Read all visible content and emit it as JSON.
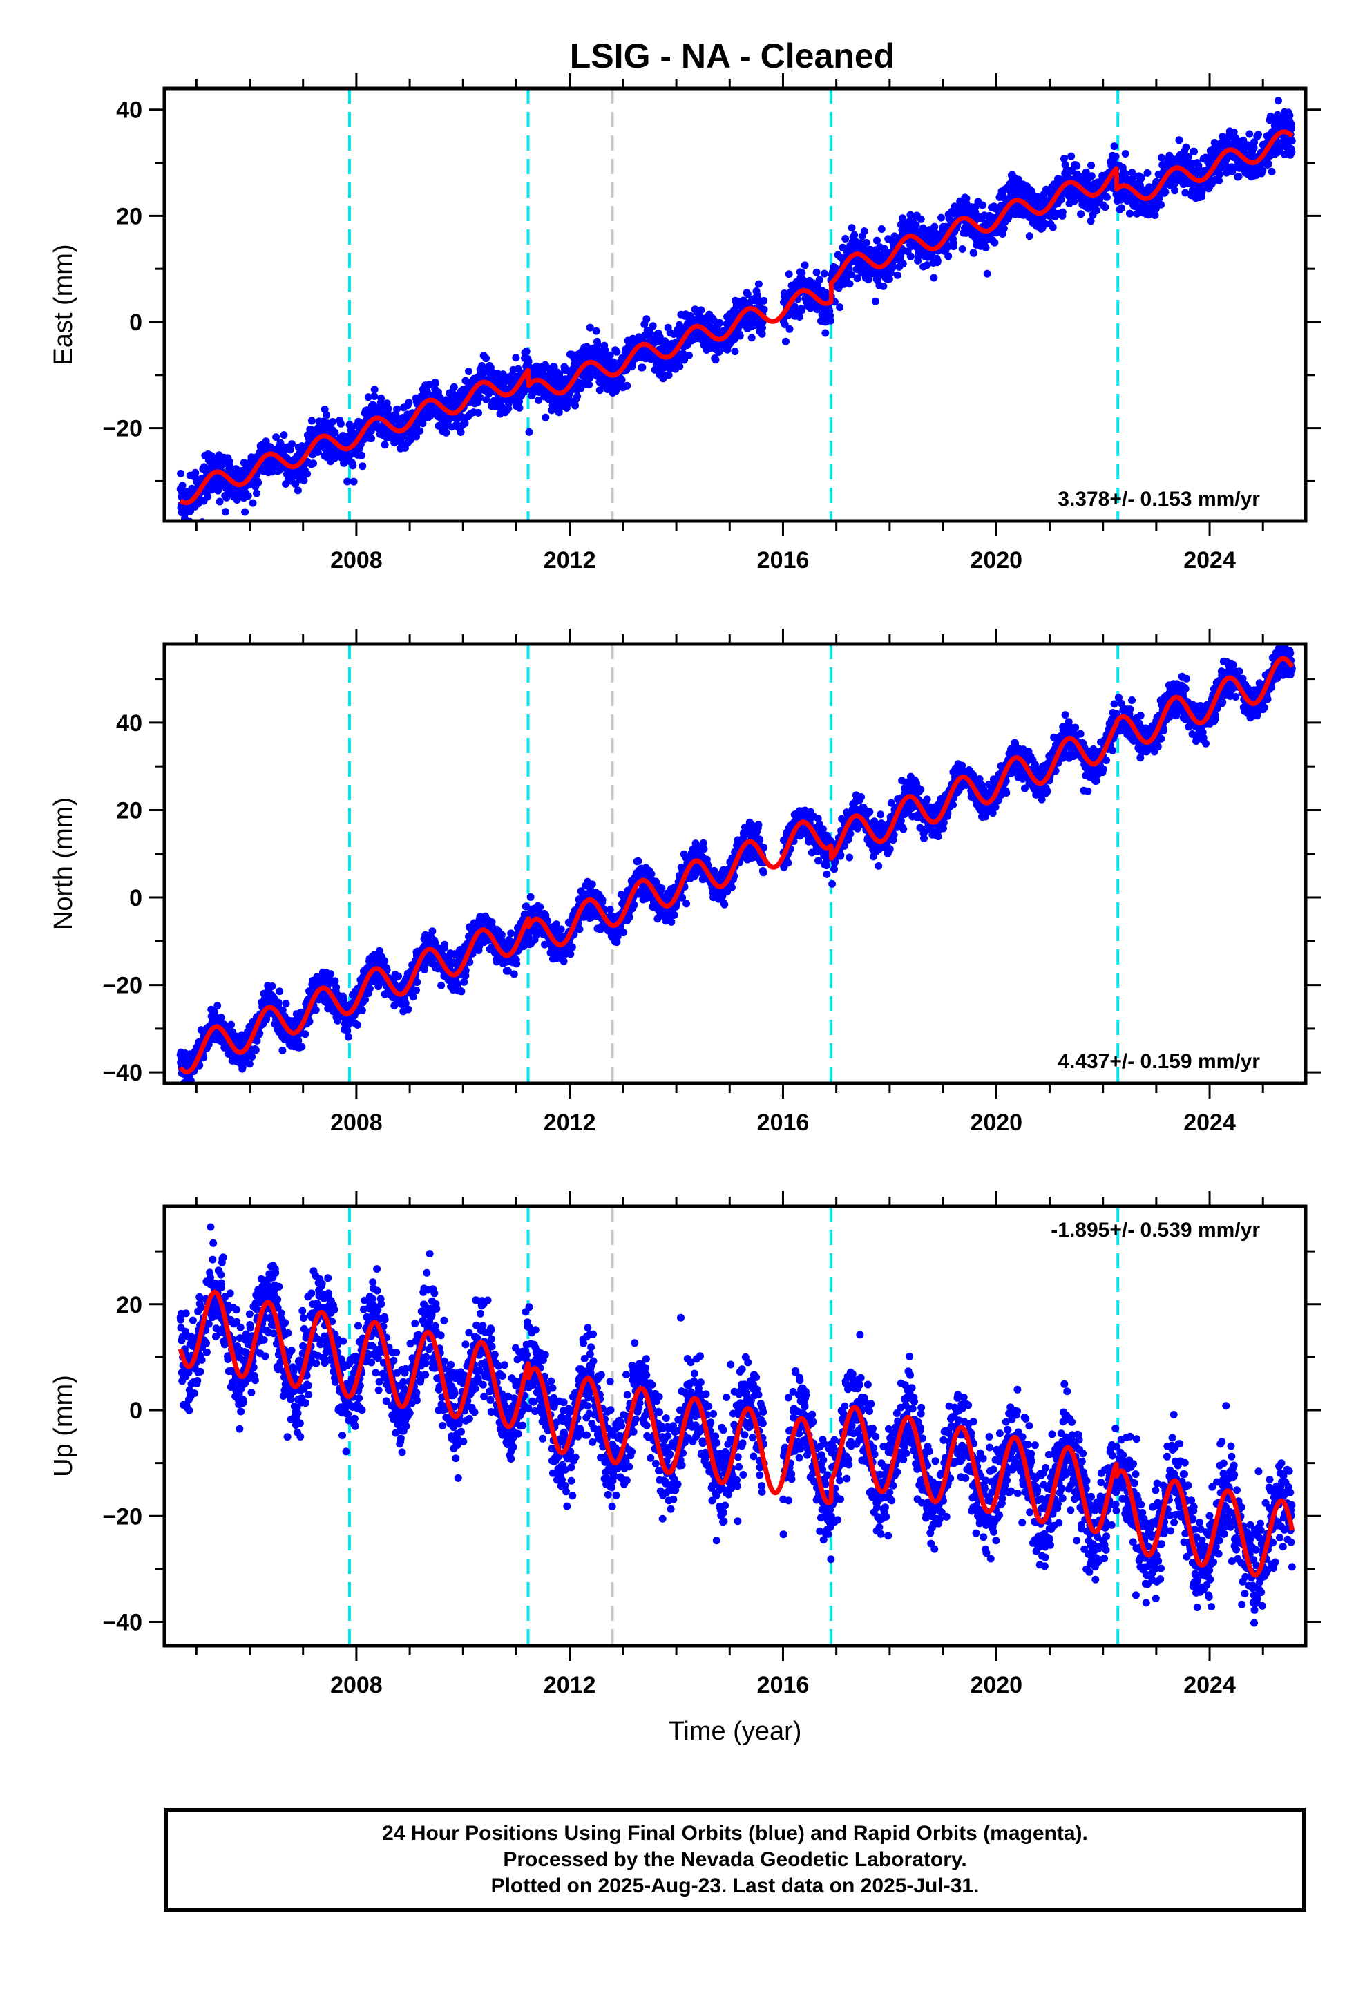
{
  "chart_data": [
    {
      "type": "scatter",
      "title": "LSIG  - NA - Cleaned",
      "ylabel": "East (mm)",
      "xlabel": "",
      "xlim": [
        2004.4,
        2025.8
      ],
      "ylim": [
        -37.5,
        44
      ],
      "xticks": [
        2008,
        2012,
        2016,
        2020,
        2024
      ],
      "yticks": [
        -20,
        0,
        20,
        40
      ],
      "rate_text": "3.378+/- 0.153 mm/yr",
      "rate_position": "bottom-right",
      "grid": false,
      "series": [
        {
          "kind": "points",
          "color": "#0000ff",
          "x_range": [
            2004.7,
            2025.55
          ],
          "gap": [
            2015.65,
            2016.0
          ],
          "start": -32.5,
          "rate": 3.378,
          "amp": 2.0,
          "noise": 2.0,
          "offsets": [
            [
              2011.22,
              -3.0
            ],
            [
              2016.9,
              3.5
            ],
            [
              2022.25,
              -4.0
            ]
          ]
        },
        {
          "kind": "model",
          "color": "#ff0000",
          "x_range": [
            2004.7,
            2025.55
          ],
          "start": -32.5,
          "rate": 3.378,
          "amp": 2.0,
          "offsets": [
            [
              2011.22,
              -3.0
            ],
            [
              2016.9,
              3.5
            ],
            [
              2022.25,
              -4.0
            ]
          ]
        }
      ],
      "vlines": [
        {
          "x": 2007.87,
          "color": "#00e5ee"
        },
        {
          "x": 2011.22,
          "color": "#00e5ee"
        },
        {
          "x": 2012.8,
          "color": "#c8c8c8"
        },
        {
          "x": 2016.9,
          "color": "#00e5ee"
        },
        {
          "x": 2022.28,
          "color": "#00e5ee"
        }
      ]
    },
    {
      "type": "scatter",
      "title": "",
      "ylabel": "North (mm)",
      "xlabel": "",
      "xlim": [
        2004.4,
        2025.8
      ],
      "ylim": [
        -42.5,
        58
      ],
      "xticks": [
        2008,
        2012,
        2016,
        2020,
        2024
      ],
      "yticks": [
        -40,
        -20,
        0,
        20,
        40
      ],
      "rate_text": "4.437+/- 0.159 mm/yr",
      "rate_position": "bottom-right",
      "grid": false,
      "series": [
        {
          "kind": "points",
          "color": "#0000ff",
          "x_range": [
            2004.7,
            2025.55
          ],
          "gap": [
            2015.65,
            2016.0
          ],
          "start": -36.5,
          "rate": 4.437,
          "amp": 4.0,
          "noise": 2.0,
          "offsets": [
            [
              2011.22,
              -2.0
            ],
            [
              2016.9,
              -3.0
            ],
            [
              2022.25,
              0.5
            ]
          ]
        },
        {
          "kind": "model",
          "color": "#ff0000",
          "x_range": [
            2004.7,
            2025.55
          ],
          "start": -36.5,
          "rate": 4.437,
          "amp": 4.0,
          "offsets": [
            [
              2011.22,
              -2.0
            ],
            [
              2016.9,
              -3.0
            ],
            [
              2022.25,
              0.5
            ]
          ]
        }
      ],
      "vlines": [
        {
          "x": 2007.87,
          "color": "#00e5ee"
        },
        {
          "x": 2011.22,
          "color": "#00e5ee"
        },
        {
          "x": 2012.8,
          "color": "#c8c8c8"
        },
        {
          "x": 2016.9,
          "color": "#00e5ee"
        },
        {
          "x": 2022.28,
          "color": "#00e5ee"
        }
      ]
    },
    {
      "type": "scatter",
      "title": "",
      "ylabel": "Up (mm)",
      "xlabel": "Time (year)",
      "xlim": [
        2004.4,
        2025.8
      ],
      "ylim": [
        -44.5,
        38.5
      ],
      "xticks": [
        2008,
        2012,
        2016,
        2020,
        2024
      ],
      "yticks": [
        -40,
        -20,
        0,
        20
      ],
      "rate_text": "-1.895+/- 0.539 mm/yr",
      "rate_position": "top-right",
      "grid": false,
      "series": [
        {
          "kind": "points",
          "color": "#0000ff",
          "x_range": [
            2004.7,
            2025.55
          ],
          "gap": [
            2015.65,
            2016.0
          ],
          "start": 16.0,
          "rate": -1.895,
          "amp": 7.5,
          "noise": 4.5,
          "offsets": [
            [
              2011.22,
              -3.0
            ],
            [
              2016.9,
              4.0
            ],
            [
              2022.25,
              -2.5
            ]
          ]
        },
        {
          "kind": "model",
          "color": "#ff0000",
          "x_range": [
            2004.7,
            2025.55
          ],
          "start": 16.0,
          "rate": -1.895,
          "amp": 7.5,
          "offsets": [
            [
              2011.22,
              -3.0
            ],
            [
              2016.9,
              4.0
            ],
            [
              2022.25,
              -2.5
            ]
          ]
        }
      ],
      "vlines": [
        {
          "x": 2007.87,
          "color": "#00e5ee"
        },
        {
          "x": 2011.22,
          "color": "#00e5ee"
        },
        {
          "x": 2012.8,
          "color": "#c8c8c8"
        },
        {
          "x": 2016.9,
          "color": "#00e5ee"
        },
        {
          "x": 2022.28,
          "color": "#00e5ee"
        }
      ]
    }
  ],
  "footer": {
    "line1": "24 Hour Positions Using Final Orbits (blue) and Rapid Orbits (magenta).",
    "line2": "Processed by the Nevada Geodetic Laboratory.",
    "line3": "Plotted on 2025-Aug-23. Last data on 2025-Jul-31."
  }
}
